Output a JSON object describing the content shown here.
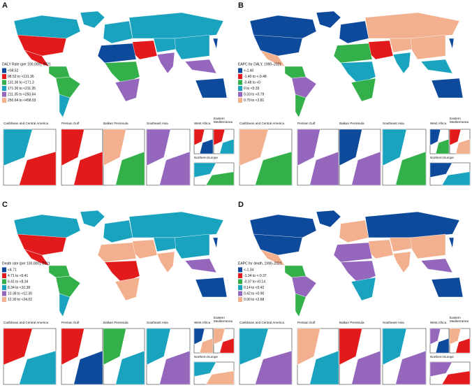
{
  "panels": [
    {
      "label": "A",
      "legend_title": "DALY Rate (per 100,000), 2021",
      "legend": [
        {
          "label": "<98.52",
          "color": "#0d4a9c"
        },
        {
          "label": "98.52  to <131.36",
          "color": "#e31a1c"
        },
        {
          "label": "131.36  to <171.3",
          "color": "#33b04a"
        },
        {
          "label": "171.30 to <211.35",
          "color": "#1aa3bf"
        },
        {
          "label": "211.35 to <250.64",
          "color": "#9467bd"
        },
        {
          "label": "250.64 to <458.03",
          "color": "#f2b08f"
        }
      ],
      "insets": [
        "Caribbean and Central America",
        "Persian Gulf",
        "Balkan Peninsula",
        "Southeast Asia",
        "West Africa",
        "Eastern Mediterranea",
        "Northern Europe"
      ]
    },
    {
      "label": "B",
      "legend_title": "EAPC for DALY, 1990–2021",
      "legend": [
        {
          "label": "<-1.40",
          "color": "#0d4a9c"
        },
        {
          "label": "-1.40 to <-0.48",
          "color": "#e31a1c"
        },
        {
          "label": "-0.48 to <0",
          "color": "#33b04a"
        },
        {
          "label": "0 to <0.33",
          "color": "#1aa3bf"
        },
        {
          "label": "0.33 to <0.79",
          "color": "#9467bd"
        },
        {
          "label": "0.79 to <2.81",
          "color": "#f2b08f"
        }
      ],
      "insets": [
        "Caribbean and Central America",
        "Persian Gulf",
        "Balkan Peninsula",
        "Southeast Asia",
        "West Africa",
        "Eastern Mediterranea",
        "Northern Europe"
      ]
    },
    {
      "label": "C",
      "legend_title": "Death rate (per 100,000), 2021",
      "legend": [
        {
          "label": "<4.71",
          "color": "#0d4a9c"
        },
        {
          "label": "4.71 to <6.41",
          "color": "#e31a1c"
        },
        {
          "label": "6.41 to <8.34",
          "color": "#33b04a"
        },
        {
          "label": "8.34 to <10.38",
          "color": "#1aa3bf"
        },
        {
          "label": "10.38 to <12.30",
          "color": "#9467bd"
        },
        {
          "label": "12.30 to <24.02",
          "color": "#f2b08f"
        }
      ],
      "insets": [
        "Caribbean and Central America",
        "Persian Gulf",
        "Balkan Peninsula",
        "Southeast Asia",
        "West Africa",
        "Eastern Mediterranea",
        "Northern Europe"
      ]
    },
    {
      "label": "D",
      "legend_title": "EAPC for death, 1990–2021",
      "legend": [
        {
          "label": "<-1.34",
          "color": "#0d4a9c"
        },
        {
          "label": "-1.34 to <-0.37",
          "color": "#e31a1c"
        },
        {
          "label": "-0.37 to <0.14",
          "color": "#33b04a"
        },
        {
          "label": "0.14 to <0.42",
          "color": "#1aa3bf"
        },
        {
          "label": "0.42 to <0.90",
          "color": "#9467bd"
        },
        {
          "label": "0.90 to <2.68",
          "color": "#f2b08f"
        }
      ],
      "insets": [
        "Caribbean and Central America",
        "Persian Gulf",
        "Balkan Peninsula",
        "Southeast Asia",
        "West Africa",
        "Eastern Mediterranea",
        "Northern Europe"
      ]
    }
  ]
}
